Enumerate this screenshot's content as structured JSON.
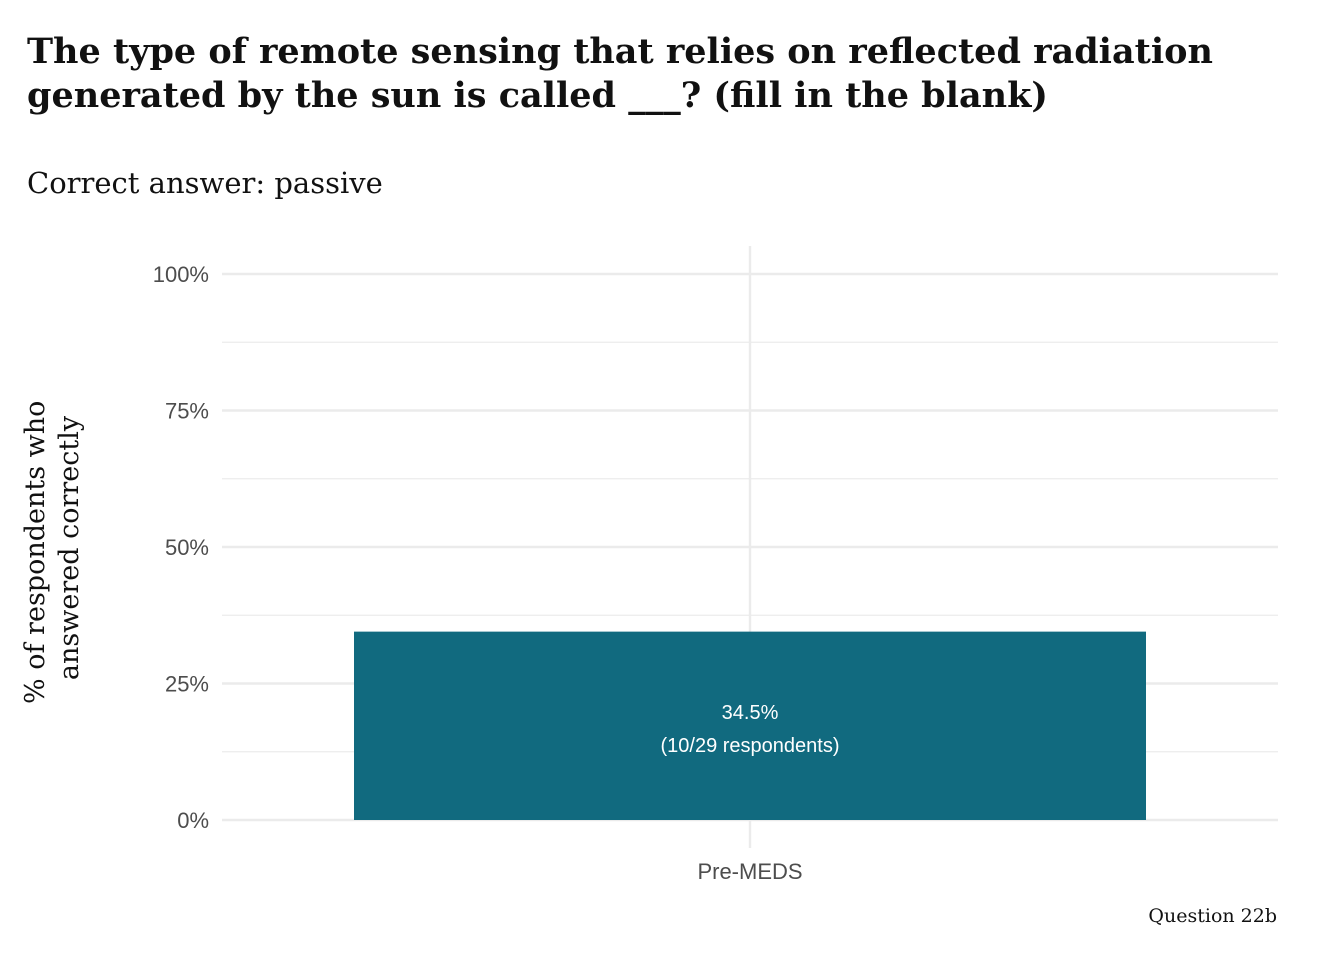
{
  "chart_data": {
    "type": "bar",
    "title_lines": [
      "The type of remote sensing that relies on reflected radiation",
      "generated by the sun is called ___? (fill in the blank)"
    ],
    "subtitle": "Correct answer: passive",
    "ylabel_lines": [
      "% of respondents who",
      "answered correctly"
    ],
    "xlabel": "",
    "categories": [
      "Pre-MEDS"
    ],
    "values": [
      34.5
    ],
    "bar_labels": [
      [
        "34.5%",
        "(10/29 respondents)"
      ]
    ],
    "ylim": [
      0,
      100
    ],
    "yticks": [
      0,
      25,
      50,
      75,
      100
    ],
    "ytick_labels": [
      "0%",
      "25%",
      "50%",
      "75%",
      "100%"
    ],
    "grid": true,
    "caption": "Question 22b",
    "colors": {
      "bar": "#116a7f",
      "grid": "#ebebeb",
      "bar_label": "#ffffff"
    }
  }
}
